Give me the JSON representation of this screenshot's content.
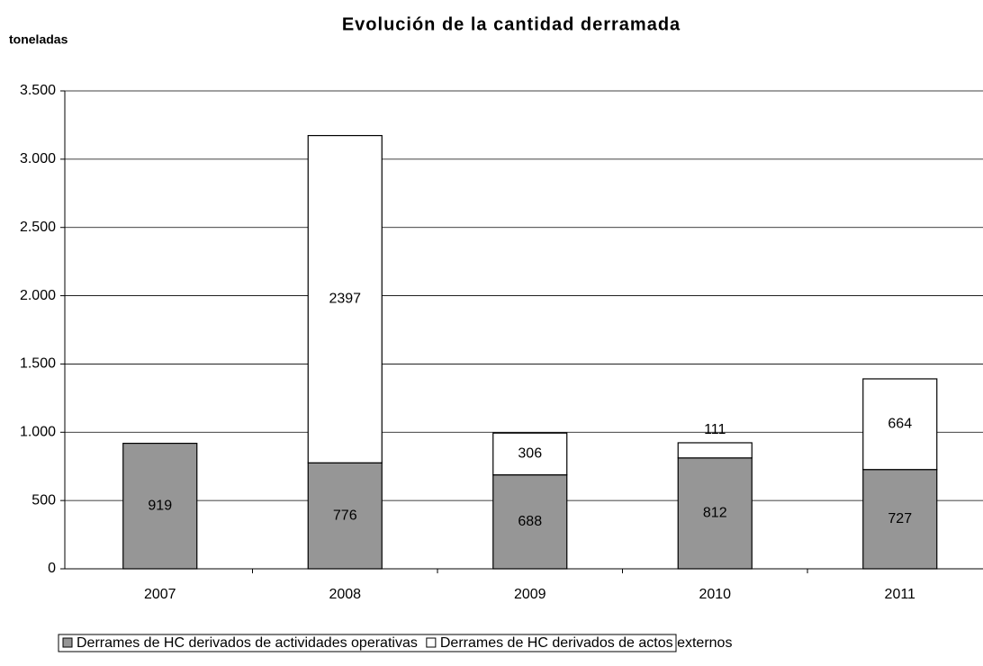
{
  "chart_data": {
    "type": "bar",
    "stacked": true,
    "title": "Evolución de la cantidad derramada",
    "ylabel": "toneladas",
    "categories": [
      "2007",
      "2008",
      "2009",
      "2010",
      "2011"
    ],
    "series": [
      {
        "name": "Derrames de HC derivados de actividades operativas",
        "color": "#969696",
        "values": [
          919,
          776,
          688,
          812,
          727
        ]
      },
      {
        "name": "Derrames de HC derivados de actos externos",
        "color": "#ffffff",
        "values": [
          null,
          2397,
          306,
          111,
          664
        ]
      }
    ],
    "ylim": [
      0,
      3500
    ],
    "yticks": [
      0,
      500,
      {
        "value": 1000,
        "label": "1.000"
      },
      {
        "value": 1500,
        "label": "1.500"
      },
      {
        "value": 2000,
        "label": "2.000"
      },
      {
        "value": 2500,
        "label": "2.500"
      },
      {
        "value": 3000,
        "label": "3.000"
      },
      {
        "value": 3500,
        "label": "3.500"
      }
    ],
    "grid": true,
    "legend": "bottom"
  }
}
